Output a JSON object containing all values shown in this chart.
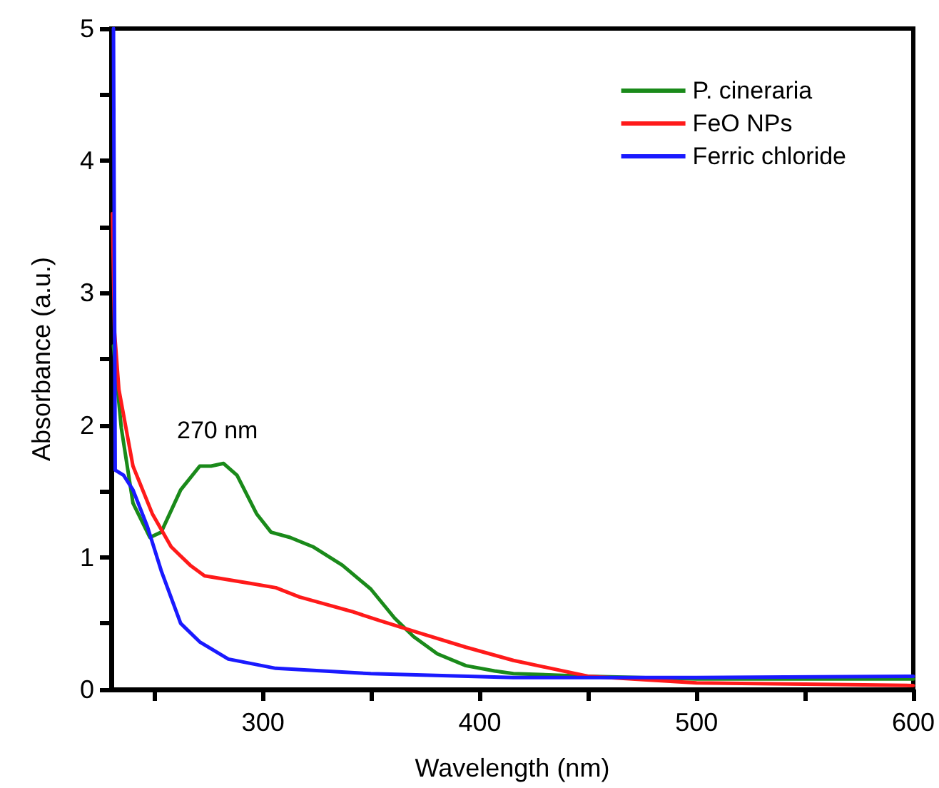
{
  "chart_data": {
    "type": "line",
    "xlabel": "Wavelength (nm)",
    "ylabel": "Absorbance (a.u.)",
    "xlim": [
      230,
      600
    ],
    "xticks": [
      {
        "value": 250,
        "label": null
      },
      300,
      {
        "value": 350,
        "label": null
      },
      400,
      {
        "value": 450,
        "label": null
      },
      500,
      {
        "value": 550,
        "label": null
      },
      600
    ],
    "ylim": [
      0,
      5
    ],
    "yticks": [
      0,
      {
        "value": 0.5,
        "label": null
      },
      1,
      {
        "value": 1.5,
        "label": null
      },
      2,
      {
        "value": 2.5,
        "label": null
      },
      3,
      {
        "value": 3.5,
        "label": null
      },
      4,
      {
        "value": 4.5,
        "label": null
      },
      5
    ],
    "grid": false,
    "legend": "top right",
    "marker": "none",
    "line_style": "solid",
    "annotations": [
      "270 nm"
    ],
    "series": [
      {
        "name": "P. cineraria",
        "color": "#1a8a1a",
        "x": [
          231,
          234.6,
          240,
          247.8,
          253,
          262,
          270.8,
          276,
          281.8,
          288,
          297,
          303.7,
          312.5,
          323,
          336.6,
          349.7,
          360.7,
          369.5,
          380.4,
          393.6,
          406.8,
          415.5,
          450,
          500,
          550,
          600
        ],
        "values": [
          2.6,
          1.98,
          1.41,
          1.15,
          1.19,
          1.51,
          1.69,
          1.69,
          1.71,
          1.62,
          1.33,
          1.19,
          1.15,
          1.08,
          0.94,
          0.76,
          0.54,
          0.4,
          0.27,
          0.18,
          0.14,
          0.12,
          0.1,
          0.08,
          0.08,
          0.08
        ]
      },
      {
        "name": "FeO NPs",
        "color": "#ff1a1a",
        "x": [
          230.5,
          231.5,
          233.5,
          240,
          248.9,
          257.6,
          266.4,
          273,
          284,
          295,
          305.9,
          316.8,
          327.8,
          341,
          354,
          371.7,
          393.6,
          415.5,
          450,
          500,
          550,
          600
        ],
        "values": [
          3.6,
          2.7,
          2.27,
          1.69,
          1.33,
          1.08,
          0.94,
          0.86,
          0.83,
          0.8,
          0.77,
          0.7,
          0.65,
          0.59,
          0.52,
          0.43,
          0.32,
          0.22,
          0.1,
          0.05,
          0.04,
          0.03
        ]
      },
      {
        "name": "Ferric chloride",
        "color": "#1a1aff",
        "x": [
          231,
          231.8,
          235.7,
          240,
          246.7,
          253,
          262,
          270.8,
          284,
          305.9,
          349.7,
          415.5,
          500,
          600
        ],
        "values": [
          5,
          1.66,
          1.62,
          1.51,
          1.23,
          0.9,
          0.5,
          0.36,
          0.23,
          0.16,
          0.12,
          0.09,
          0.09,
          0.1
        ]
      }
    ]
  }
}
